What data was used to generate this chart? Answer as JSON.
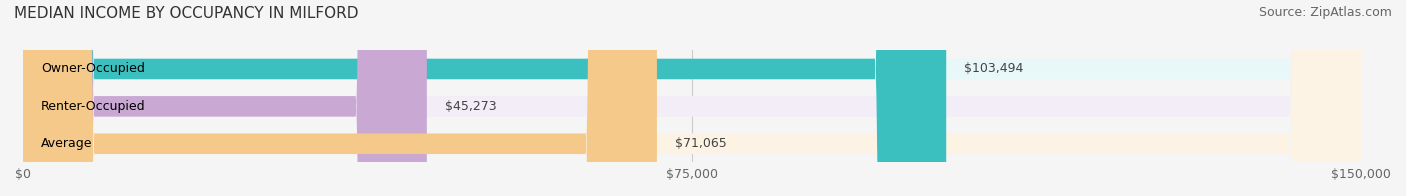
{
  "title": "MEDIAN INCOME BY OCCUPANCY IN MILFORD",
  "source": "Source: ZipAtlas.com",
  "categories": [
    "Owner-Occupied",
    "Renter-Occupied",
    "Average"
  ],
  "values": [
    103494,
    45273,
    71065
  ],
  "labels": [
    "$103,494",
    "$45,273",
    "$71,065"
  ],
  "bar_colors": [
    "#3bbfbf",
    "#c9a8d4",
    "#f5c98a"
  ],
  "bar_bg_colors": [
    "#e8f8f8",
    "#f2edf6",
    "#fdf3e5"
  ],
  "xlim": [
    0,
    150000
  ],
  "xticks": [
    0,
    75000,
    150000
  ],
  "xtick_labels": [
    "$0",
    "$75,000",
    "$150,000"
  ],
  "title_fontsize": 11,
  "source_fontsize": 9,
  "label_fontsize": 9,
  "bar_label_fontsize": 9,
  "category_fontsize": 9,
  "bar_height": 0.55,
  "background_color": "#f5f5f5"
}
